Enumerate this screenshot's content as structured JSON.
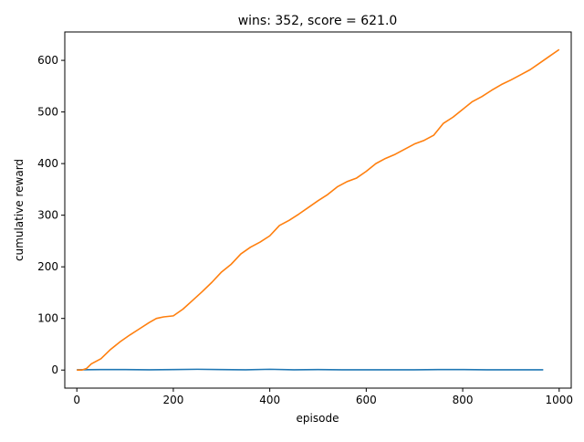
{
  "chart_data": {
    "type": "line",
    "title": "wins: 352, score = 621.0",
    "xlabel": "episode",
    "ylabel": "cumulative reward",
    "xlim": [
      -25,
      1025
    ],
    "ylim": [
      -35,
      655
    ],
    "x_ticks": [
      0,
      200,
      400,
      600,
      800,
      1000
    ],
    "y_ticks": [
      0,
      100,
      200,
      300,
      400,
      500,
      600
    ],
    "grid": false,
    "legend": "none",
    "series": [
      {
        "color": "#1f77b4",
        "x": [
          0,
          50,
          100,
          150,
          200,
          250,
          300,
          350,
          400,
          450,
          500,
          550,
          600,
          650,
          700,
          750,
          800,
          850,
          900,
          967
        ],
        "y": [
          0.5,
          1,
          1,
          0.5,
          1,
          1.5,
          1,
          0.5,
          1.5,
          0.5,
          1,
          0.5,
          0.5,
          0.5,
          0.5,
          1,
          1,
          0.5,
          0.5,
          0.5
        ]
      },
      {
        "color": "#ff7f0e",
        "x": [
          0,
          10,
          20,
          30,
          50,
          70,
          90,
          110,
          130,
          150,
          165,
          180,
          200,
          220,
          240,
          260,
          280,
          300,
          320,
          340,
          360,
          380,
          400,
          420,
          440,
          460,
          480,
          500,
          520,
          540,
          560,
          580,
          600,
          620,
          640,
          660,
          680,
          700,
          720,
          740,
          760,
          780,
          800,
          820,
          840,
          860,
          880,
          900,
          920,
          940,
          960,
          980,
          1000
        ],
        "y": [
          0,
          0,
          3,
          12,
          22,
          40,
          55,
          68,
          80,
          92,
          100,
          103,
          105,
          118,
          135,
          152,
          170,
          190,
          205,
          225,
          238,
          248,
          260,
          280,
          290,
          302,
          315,
          328,
          340,
          355,
          365,
          372,
          385,
          400,
          410,
          418,
          428,
          438,
          445,
          455,
          478,
          490,
          505,
          520,
          530,
          542,
          553,
          562,
          572,
          582,
          595,
          608,
          621
        ]
      }
    ]
  }
}
